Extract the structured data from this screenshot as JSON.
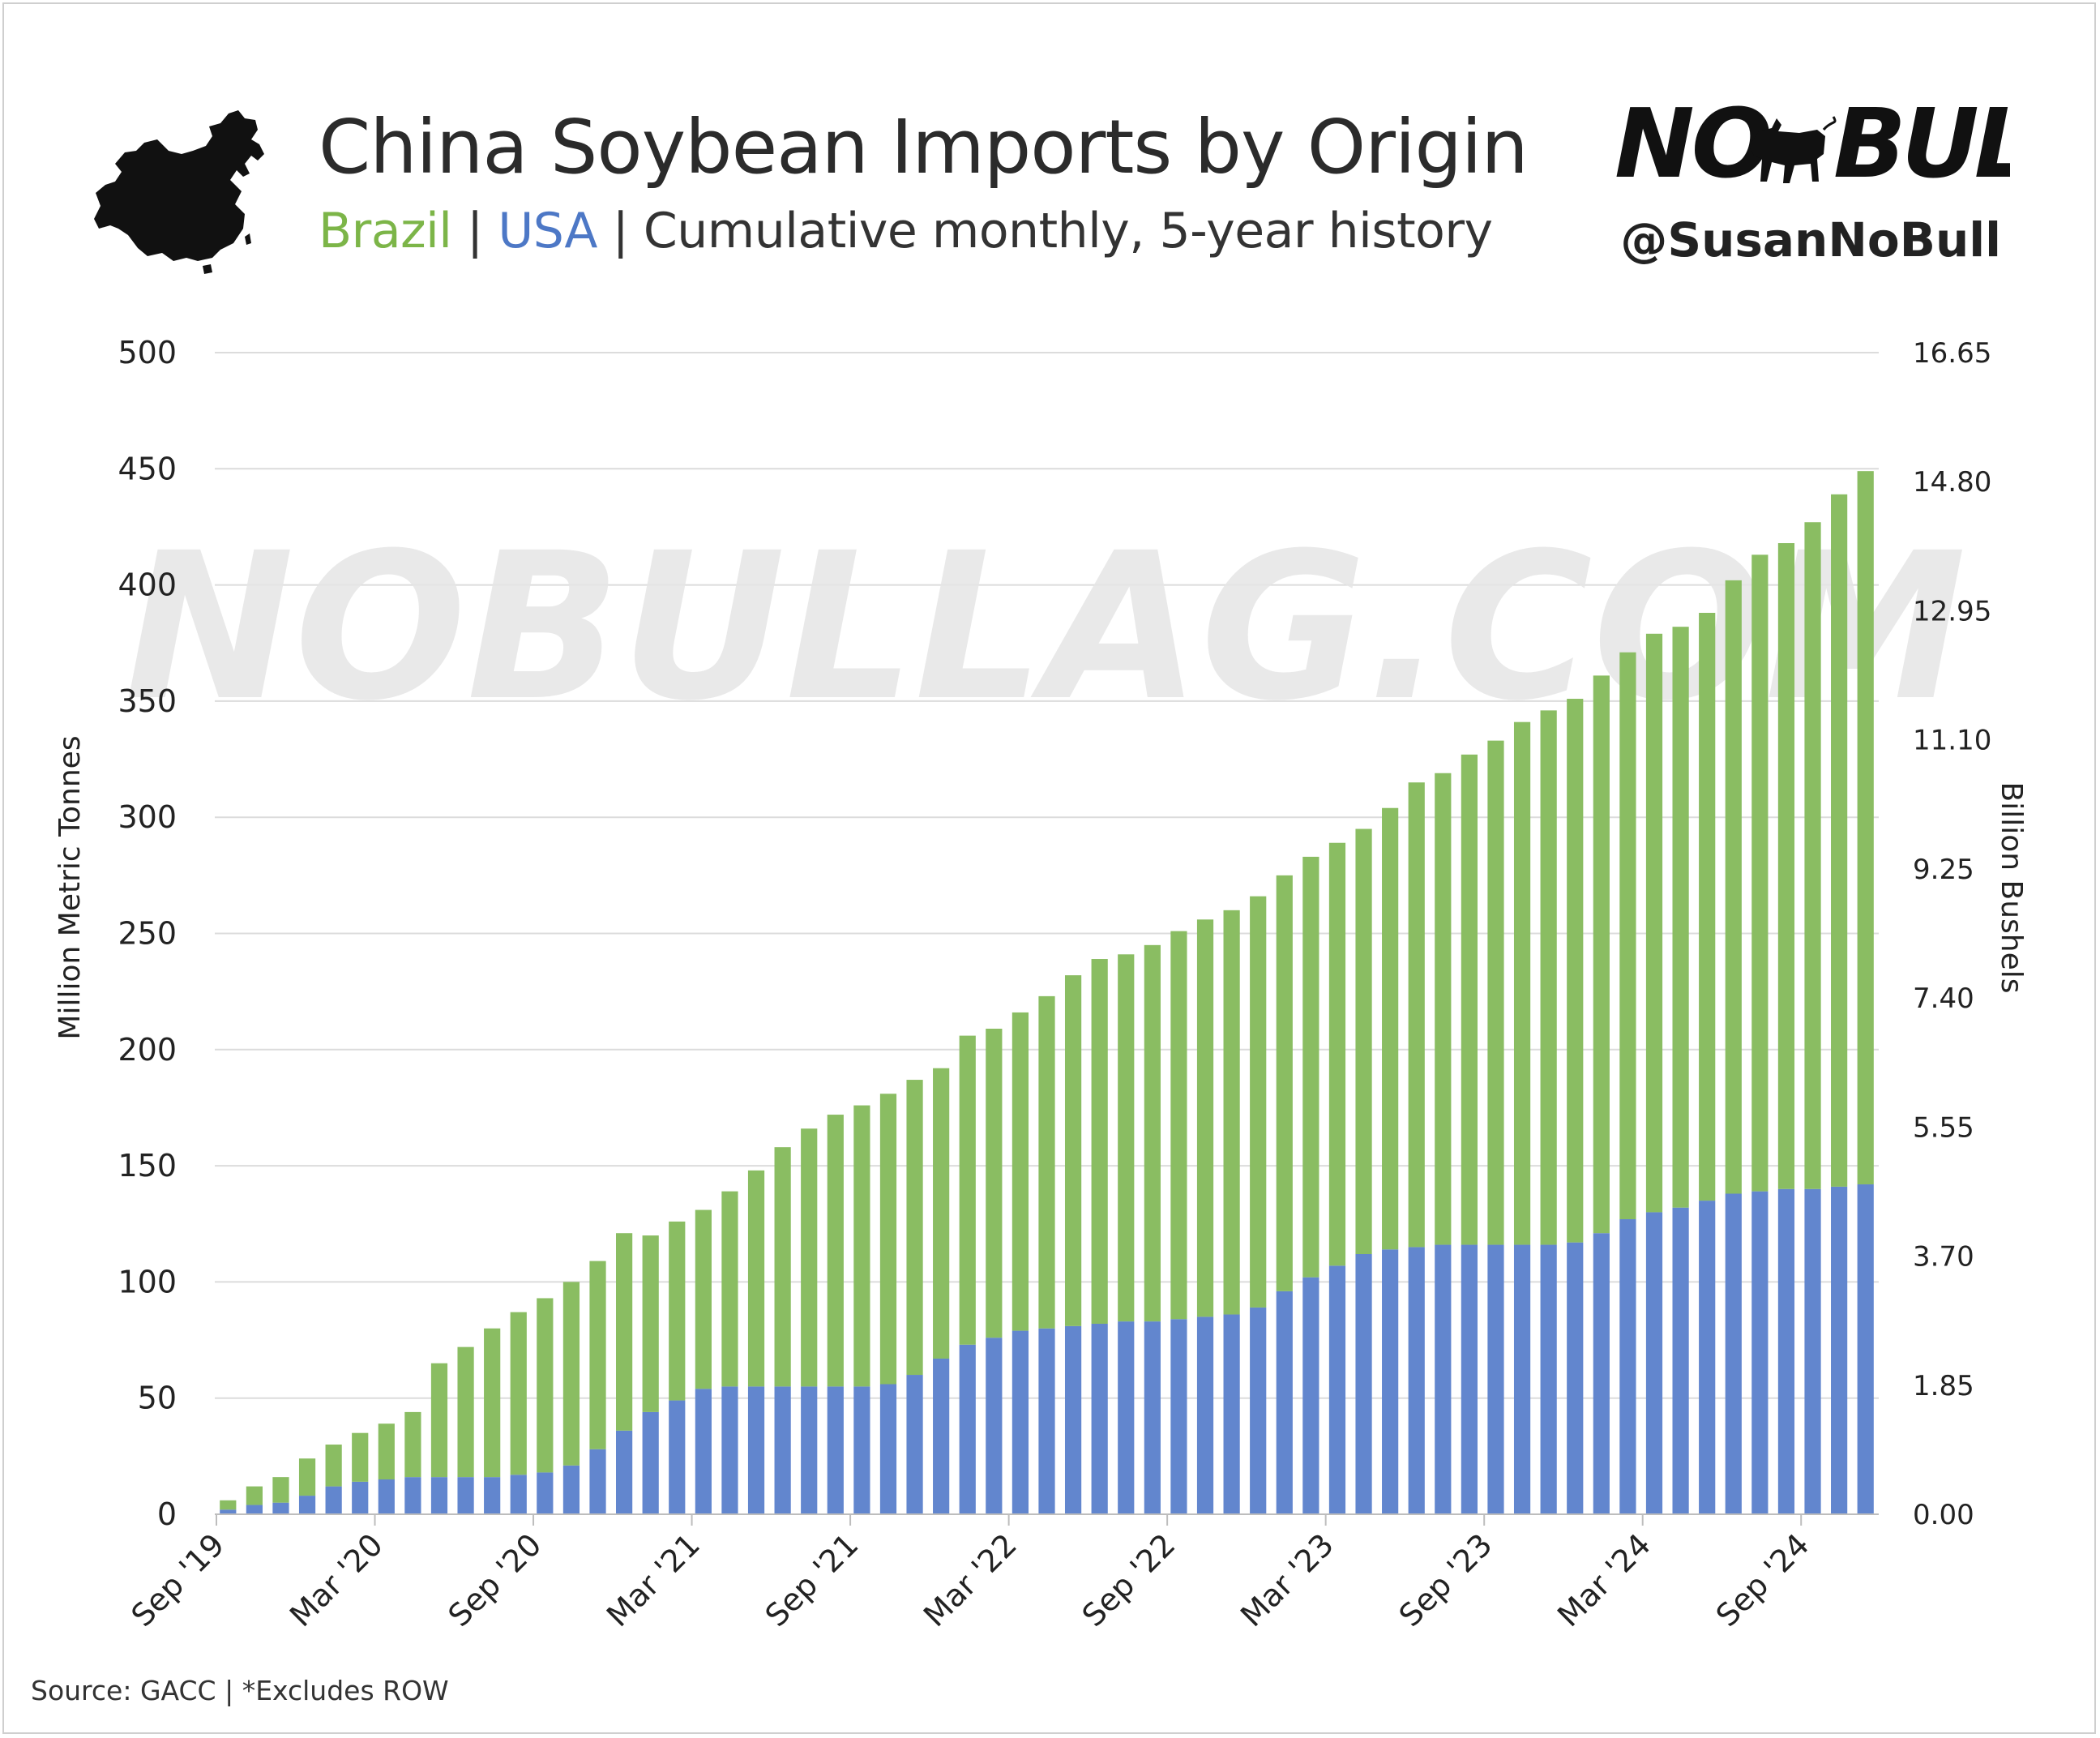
{
  "header": {
    "title": "China Soybean Imports by Origin",
    "subtitle_brazil": "Brazil",
    "subtitle_sep1": "|",
    "subtitle_usa": "USA",
    "subtitle_sep2": "|",
    "subtitle_rest": "Cumulative monthly, 5-year history",
    "handle": "@SusanNoBull",
    "logo_text_left": "NO",
    "logo_text_right": "BULL"
  },
  "watermark": "NOBULLAG.COM",
  "footer": {
    "source": "Source: GACC | *Excludes ROW"
  },
  "colors": {
    "brazil": "#8abd62",
    "usa": "#6286ce",
    "brazil_text": "#7cb548",
    "usa_text": "#4d78c6",
    "grid": "#dcdcdc"
  },
  "chart_data": {
    "type": "bar",
    "stacked": true,
    "ylabel": "Million Metric Tonnes",
    "y2label": "Billion Bushels",
    "ylim": [
      0,
      500
    ],
    "yticks": [
      "0",
      "50",
      "100",
      "150",
      "200",
      "250",
      "300",
      "350",
      "400",
      "450",
      "500"
    ],
    "y2ticks": [
      "0.00",
      "1.85",
      "3.70",
      "5.55",
      "7.40",
      "9.25",
      "11.10",
      "12.95",
      "14.80",
      "16.65"
    ],
    "xticks": [
      "Sep '19",
      "Mar '20",
      "Sep '20",
      "Mar '21",
      "Sep '21",
      "Mar '22",
      "Sep '22",
      "Mar '23",
      "Sep '23",
      "Mar '24",
      "Sep '24"
    ],
    "grid": true,
    "series": [
      {
        "name": "USA",
        "values": [
          2,
          4,
          5,
          8,
          12,
          14,
          15,
          16,
          16,
          16,
          16,
          17,
          18,
          21,
          28,
          36,
          44,
          49,
          54,
          55,
          55,
          55,
          55,
          55,
          55,
          56,
          60,
          67,
          73,
          76,
          79,
          80,
          81,
          82,
          83,
          83,
          84,
          85,
          86,
          89,
          96,
          102,
          107,
          112,
          114,
          115,
          116,
          116,
          116,
          116,
          116,
          117,
          121,
          127,
          130,
          132,
          135,
          138,
          139,
          140,
          140,
          141,
          142
        ]
      },
      {
        "name": "Brazil",
        "values": [
          4,
          8,
          11,
          16,
          18,
          21,
          24,
          28,
          49,
          56,
          64,
          70,
          75,
          79,
          81,
          85,
          76,
          77,
          77,
          84,
          93,
          103,
          111,
          117,
          121,
          125,
          127,
          125,
          133,
          133,
          137,
          143,
          151,
          157,
          158,
          162,
          167,
          171,
          174,
          177,
          179,
          181,
          182,
          183,
          190,
          200,
          203,
          211,
          217,
          225,
          230,
          234,
          240,
          244,
          249,
          250,
          253,
          264,
          274,
          278,
          287,
          298,
          307
        ]
      }
    ]
  }
}
